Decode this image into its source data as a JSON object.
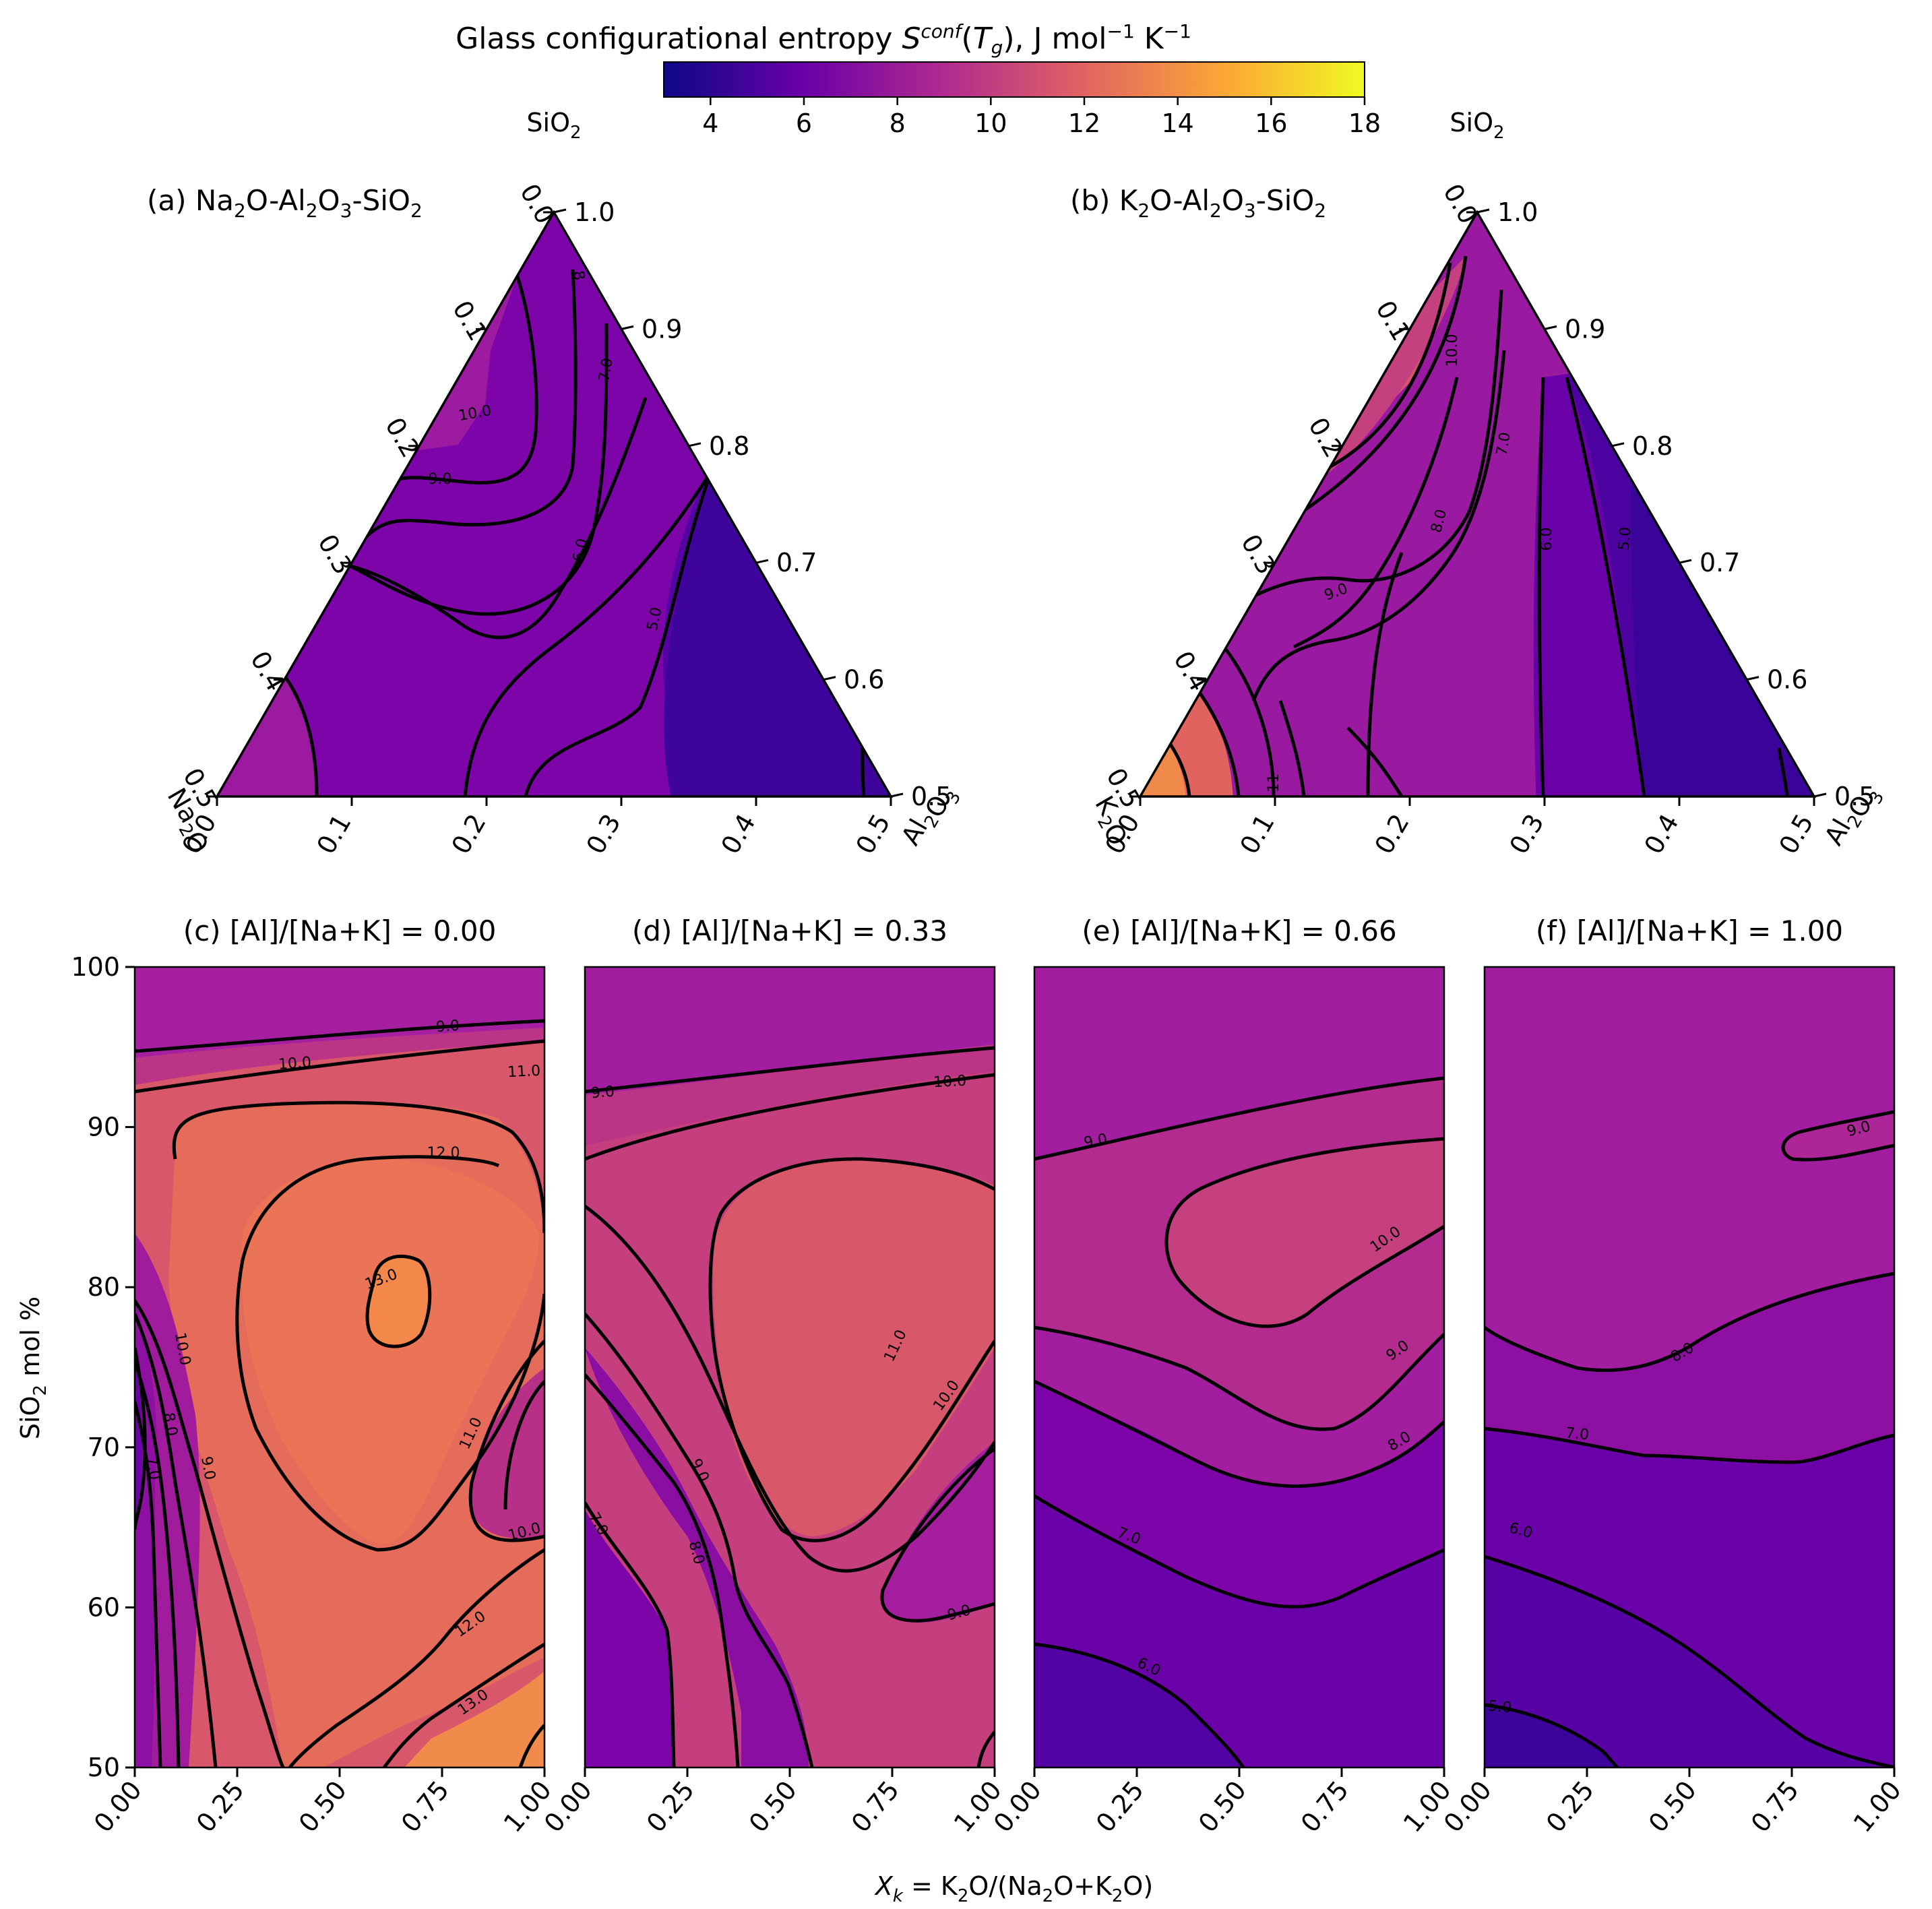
{
  "colorbar": {
    "title": "Glass configurational entropy S^conf(T_g), J mol^-1 K^-1",
    "min": 3,
    "max": 18,
    "ticks": [
      "4",
      "6",
      "8",
      "10",
      "12",
      "14",
      "16",
      "18"
    ],
    "colormap": "plasma",
    "colors": [
      "#0d0887",
      "#6a00a8",
      "#b12a90",
      "#e16462",
      "#fca636",
      "#f0f921"
    ]
  },
  "chart_data": [
    {
      "id": "a",
      "type": "contour",
      "projection": "ternary",
      "title": "(a) Na2O-Al2O3-SiO2",
      "corner_labels": {
        "top": "SiO2",
        "left": "Na2O",
        "right": "Al2O3"
      },
      "left_ticks": [
        "0.0",
        "0.1",
        "0.2",
        "0.3",
        "0.4",
        "0.5"
      ],
      "right_ticks": [
        "1.0",
        "0.9",
        "0.8",
        "0.7",
        "0.6",
        "0.5"
      ],
      "bottom_ticks": [
        "0.0",
        "0.1",
        "0.2",
        "0.3",
        "0.4",
        "0.5"
      ],
      "levels": [
        5,
        6,
        7,
        8,
        9,
        10
      ],
      "contour_labels": [
        "8",
        "7.0",
        "10.0",
        "9.0",
        "6.0",
        "5.0"
      ]
    },
    {
      "id": "b",
      "type": "contour",
      "projection": "ternary",
      "title": "(b) K2O-Al2O3-SiO2",
      "corner_labels": {
        "top": "SiO2",
        "left": "K2O",
        "right": "Al2O3"
      },
      "left_ticks": [
        "0.0",
        "0.1",
        "0.2",
        "0.3",
        "0.4",
        "0.5"
      ],
      "right_ticks": [
        "1.0",
        "0.9",
        "0.8",
        "0.7",
        "0.6",
        "0.5"
      ],
      "bottom_ticks": [
        "0.0",
        "0.1",
        "0.2",
        "0.3",
        "0.4",
        "0.5"
      ],
      "levels": [
        5,
        6,
        7,
        8,
        9,
        10,
        11
      ],
      "contour_labels": [
        "10.0",
        "7.0",
        "8.0",
        "9.0",
        "6.0",
        "5.0",
        "11"
      ]
    },
    {
      "id": "c",
      "type": "contour",
      "title": "(c) [Al]/[Na+K] = 0.00",
      "xlabel": "X_k = K2O/(Na2O+K2O)",
      "ylabel": "SiO2 mol %",
      "xlim": [
        0,
        1
      ],
      "ylim": [
        50,
        100
      ],
      "x_ticks": [
        "0.00",
        "0.25",
        "0.50",
        "0.75",
        "1.00"
      ],
      "y_ticks": [
        "50",
        "60",
        "70",
        "80",
        "90",
        "100"
      ],
      "contour_labels": [
        "9.0",
        "10.0",
        "11.0",
        "12.0",
        "13.0",
        "10.0",
        "8.0",
        "7.0",
        "9.0",
        "11.0",
        "10.0",
        "12.0",
        "13.0"
      ]
    },
    {
      "id": "d",
      "type": "contour",
      "title": "(d) [Al]/[Na+K] = 0.33",
      "xlim": [
        0,
        1
      ],
      "ylim": [
        50,
        100
      ],
      "x_ticks": [
        "0.00",
        "0.25",
        "0.50",
        "0.75",
        "1.00"
      ],
      "contour_labels": [
        "9.0",
        "10.0",
        "11.0",
        "10.0",
        "9.0",
        "8.0",
        "7.0",
        "9.0"
      ]
    },
    {
      "id": "e",
      "type": "contour",
      "title": "(e) [Al]/[Na+K] = 0.66",
      "xlim": [
        0,
        1
      ],
      "ylim": [
        50,
        100
      ],
      "x_ticks": [
        "0.00",
        "0.25",
        "0.50",
        "0.75",
        "1.00"
      ],
      "contour_labels": [
        "9.0",
        "10.0",
        "9.0",
        "8.0",
        "7.0",
        "6.0"
      ]
    },
    {
      "id": "f",
      "type": "contour",
      "title": "(f) [Al]/[Na+K] = 1.00",
      "xlim": [
        0,
        1
      ],
      "ylim": [
        50,
        100
      ],
      "x_ticks": [
        "0.00",
        "0.25",
        "0.50",
        "0.75",
        "1.00"
      ],
      "contour_labels": [
        "9.0",
        "8.0",
        "7.0",
        "6.0",
        "5.0"
      ]
    }
  ]
}
